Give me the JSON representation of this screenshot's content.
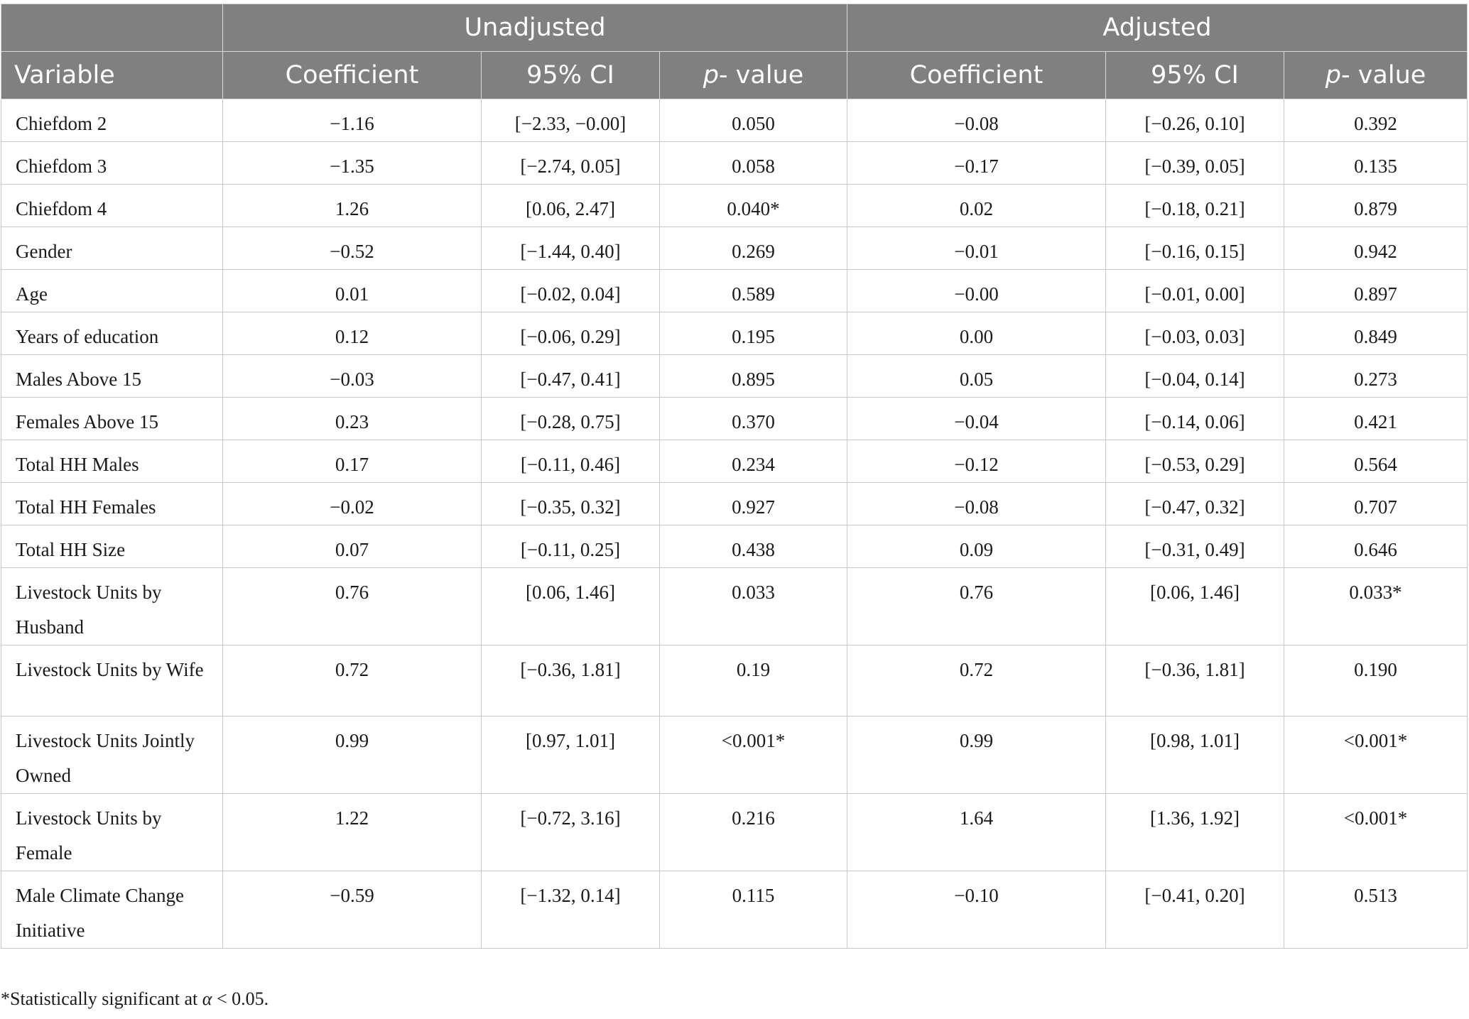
{
  "groups": {
    "unadjusted": "Unadjusted",
    "adjusted": "Adjusted"
  },
  "columns": {
    "variable": "Variable",
    "coefficient": "Coefficient",
    "ci": "95% CI",
    "p_prefix": "p",
    "p_suffix": "- value"
  },
  "rows": [
    {
      "variable": "Chiefdom 2",
      "u_coef": "−1.16",
      "u_ci": "[−2.33, −0.00]",
      "u_p": "0.050",
      "a_coef": "−0.08",
      "a_ci": "[−0.26, 0.10]",
      "a_p": "0.392"
    },
    {
      "variable": "Chiefdom 3",
      "u_coef": "−1.35",
      "u_ci": "[−2.74, 0.05]",
      "u_p": "0.058",
      "a_coef": "−0.17",
      "a_ci": "[−0.39, 0.05]",
      "a_p": "0.135"
    },
    {
      "variable": "Chiefdom 4",
      "u_coef": "1.26",
      "u_ci": "[0.06, 2.47]",
      "u_p": "0.040*",
      "a_coef": "0.02",
      "a_ci": "[−0.18, 0.21]",
      "a_p": "0.879"
    },
    {
      "variable": "Gender",
      "u_coef": "−0.52",
      "u_ci": "[−1.44, 0.40]",
      "u_p": "0.269",
      "a_coef": "−0.01",
      "a_ci": "[−0.16, 0.15]",
      "a_p": "0.942"
    },
    {
      "variable": "Age",
      "u_coef": "0.01",
      "u_ci": "[−0.02, 0.04]",
      "u_p": "0.589",
      "a_coef": "−0.00",
      "a_ci": "[−0.01, 0.00]",
      "a_p": "0.897"
    },
    {
      "variable": "Years of education",
      "u_coef": "0.12",
      "u_ci": "[−0.06, 0.29]",
      "u_p": "0.195",
      "a_coef": "0.00",
      "a_ci": "[−0.03, 0.03]",
      "a_p": "0.849"
    },
    {
      "variable": "Males Above 15",
      "u_coef": "−0.03",
      "u_ci": "[−0.47, 0.41]",
      "u_p": "0.895",
      "a_coef": "0.05",
      "a_ci": "[−0.04, 0.14]",
      "a_p": "0.273"
    },
    {
      "variable": "Females Above 15",
      "u_coef": "0.23",
      "u_ci": "[−0.28, 0.75]",
      "u_p": "0.370",
      "a_coef": "−0.04",
      "a_ci": "[−0.14, 0.06]",
      "a_p": "0.421"
    },
    {
      "variable": "Total HH Males",
      "u_coef": "0.17",
      "u_ci": "[−0.11, 0.46]",
      "u_p": "0.234",
      "a_coef": "−0.12",
      "a_ci": "[−0.53, 0.29]",
      "a_p": "0.564"
    },
    {
      "variable": "Total HH Females",
      "u_coef": "−0.02",
      "u_ci": "[−0.35, 0.32]",
      "u_p": "0.927",
      "a_coef": "−0.08",
      "a_ci": "[−0.47, 0.32]",
      "a_p": "0.707"
    },
    {
      "variable": "Total HH Size",
      "u_coef": "0.07",
      "u_ci": "[−0.11, 0.25]",
      "u_p": "0.438",
      "a_coef": "0.09",
      "a_ci": "[−0.31, 0.49]",
      "a_p": "0.646"
    },
    {
      "variable": "Livestock Units by Husband",
      "u_coef": "0.76",
      "u_ci": "[0.06, 1.46]",
      "u_p": "0.033",
      "a_coef": "0.76",
      "a_ci": "[0.06, 1.46]",
      "a_p": "0.033*"
    },
    {
      "variable": "Livestock Units by Wife",
      "u_coef": "0.72",
      "u_ci": "[−0.36, 1.81]",
      "u_p": "0.19",
      "a_coef": "0.72",
      "a_ci": "[−0.36, 1.81]",
      "a_p": "0.190"
    },
    {
      "variable": "Livestock Units Jointly Owned",
      "u_coef": "0.99",
      "u_ci": "[0.97, 1.01]",
      "u_p": "<0.001*",
      "a_coef": "0.99",
      "a_ci": "[0.98, 1.01]",
      "a_p": "<0.001*"
    },
    {
      "variable": "Livestock Units by Female",
      "u_coef": "1.22",
      "u_ci": "[−0.72, 3.16]",
      "u_p": "0.216",
      "a_coef": "1.64",
      "a_ci": "[1.36, 1.92]",
      "a_p": "<0.001*"
    },
    {
      "variable": "Male Climate Change Initiative",
      "u_coef": "−0.59",
      "u_ci": "[−1.32, 0.14]",
      "u_p": "0.115",
      "a_coef": "−0.10",
      "a_ci": "[−0.41, 0.20]",
      "a_p": "0.513"
    }
  ],
  "footnote": {
    "prefix": "*Statistically significant at ",
    "symbol": "α",
    "suffix": " < 0.05."
  }
}
